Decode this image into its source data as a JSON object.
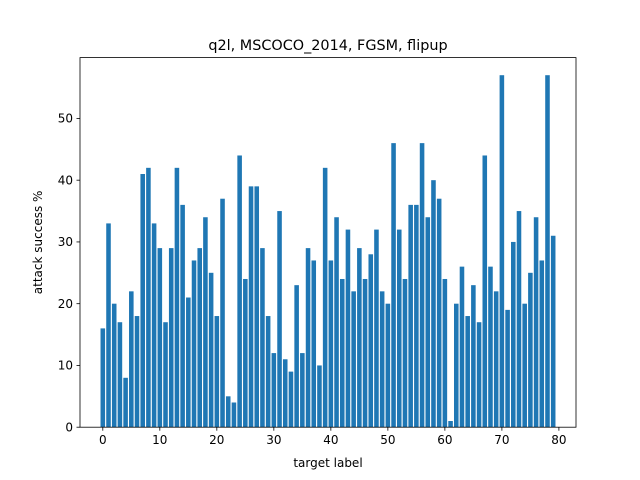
{
  "chart_data": {
    "type": "bar",
    "title": "q2l, MSCOCO_2014, FGSM, flipup",
    "xlabel": "target label",
    "ylabel": "attack success %",
    "x": [
      0,
      1,
      2,
      3,
      4,
      5,
      6,
      7,
      8,
      9,
      10,
      11,
      12,
      13,
      14,
      15,
      16,
      17,
      18,
      19,
      20,
      21,
      22,
      23,
      24,
      25,
      26,
      27,
      28,
      29,
      30,
      31,
      32,
      33,
      34,
      35,
      36,
      37,
      38,
      39,
      40,
      41,
      42,
      43,
      44,
      45,
      46,
      47,
      48,
      49,
      50,
      51,
      52,
      53,
      54,
      55,
      56,
      57,
      58,
      59,
      60,
      61,
      62,
      63,
      64,
      65,
      66,
      67,
      68,
      69,
      70,
      71,
      72,
      73,
      74,
      75,
      76,
      77,
      78,
      79
    ],
    "values": [
      16,
      33,
      20,
      17,
      8,
      22,
      18,
      41,
      42,
      33,
      29,
      17,
      29,
      42,
      36,
      21,
      27,
      29,
      34,
      25,
      18,
      37,
      5,
      4,
      44,
      24,
      39,
      39,
      29,
      18,
      12,
      35,
      11,
      9,
      23,
      12,
      29,
      27,
      10,
      42,
      27,
      34,
      24,
      32,
      22,
      29,
      24,
      28,
      32,
      22,
      20,
      46,
      32,
      24,
      36,
      36,
      46,
      34,
      40,
      37,
      24,
      1,
      20,
      26,
      18,
      23,
      17,
      44,
      26,
      22,
      57,
      19,
      30,
      35,
      20,
      25,
      34,
      27,
      57,
      31
    ],
    "xlim": [
      -4,
      83
    ],
    "ylim": [
      0,
      59.85
    ],
    "xticks": [
      0,
      10,
      20,
      30,
      40,
      50,
      60,
      70,
      80
    ],
    "yticks": [
      0,
      10,
      20,
      30,
      40,
      50
    ],
    "bar_color": "#1f77b4",
    "grid": false
  }
}
